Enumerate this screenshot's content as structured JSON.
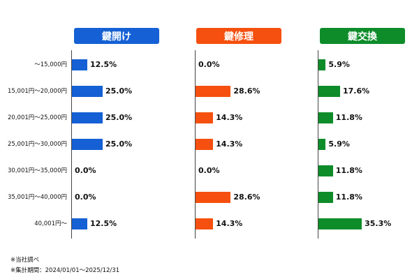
{
  "chart_data": {
    "type": "bar",
    "orientation": "horizontal",
    "categories": [
      "～15,000円",
      "15,001円～20,000円",
      "20,001円～25,000円",
      "25,001円～30,000円",
      "30,001円～35,000円",
      "35,001円～40,000円",
      "40,001円～"
    ],
    "series": [
      {
        "name": "鍵開け",
        "color": "#1560d4",
        "values": [
          12.5,
          25.0,
          25.0,
          25.0,
          0.0,
          0.0,
          12.5
        ]
      },
      {
        "name": "鍵修理",
        "color": "#f5500f",
        "values": [
          0.0,
          28.6,
          14.3,
          14.3,
          0.0,
          28.6,
          14.3
        ]
      },
      {
        "name": "鍵交換",
        "color": "#0e8c2a",
        "values": [
          5.9,
          17.6,
          11.8,
          5.9,
          11.8,
          11.8,
          35.3
        ]
      }
    ],
    "value_suffix": "%",
    "value_decimals": 1
  },
  "notes": [
    "※当社調べ",
    "※集計期間：2024/01/01～2025/12/31"
  ]
}
